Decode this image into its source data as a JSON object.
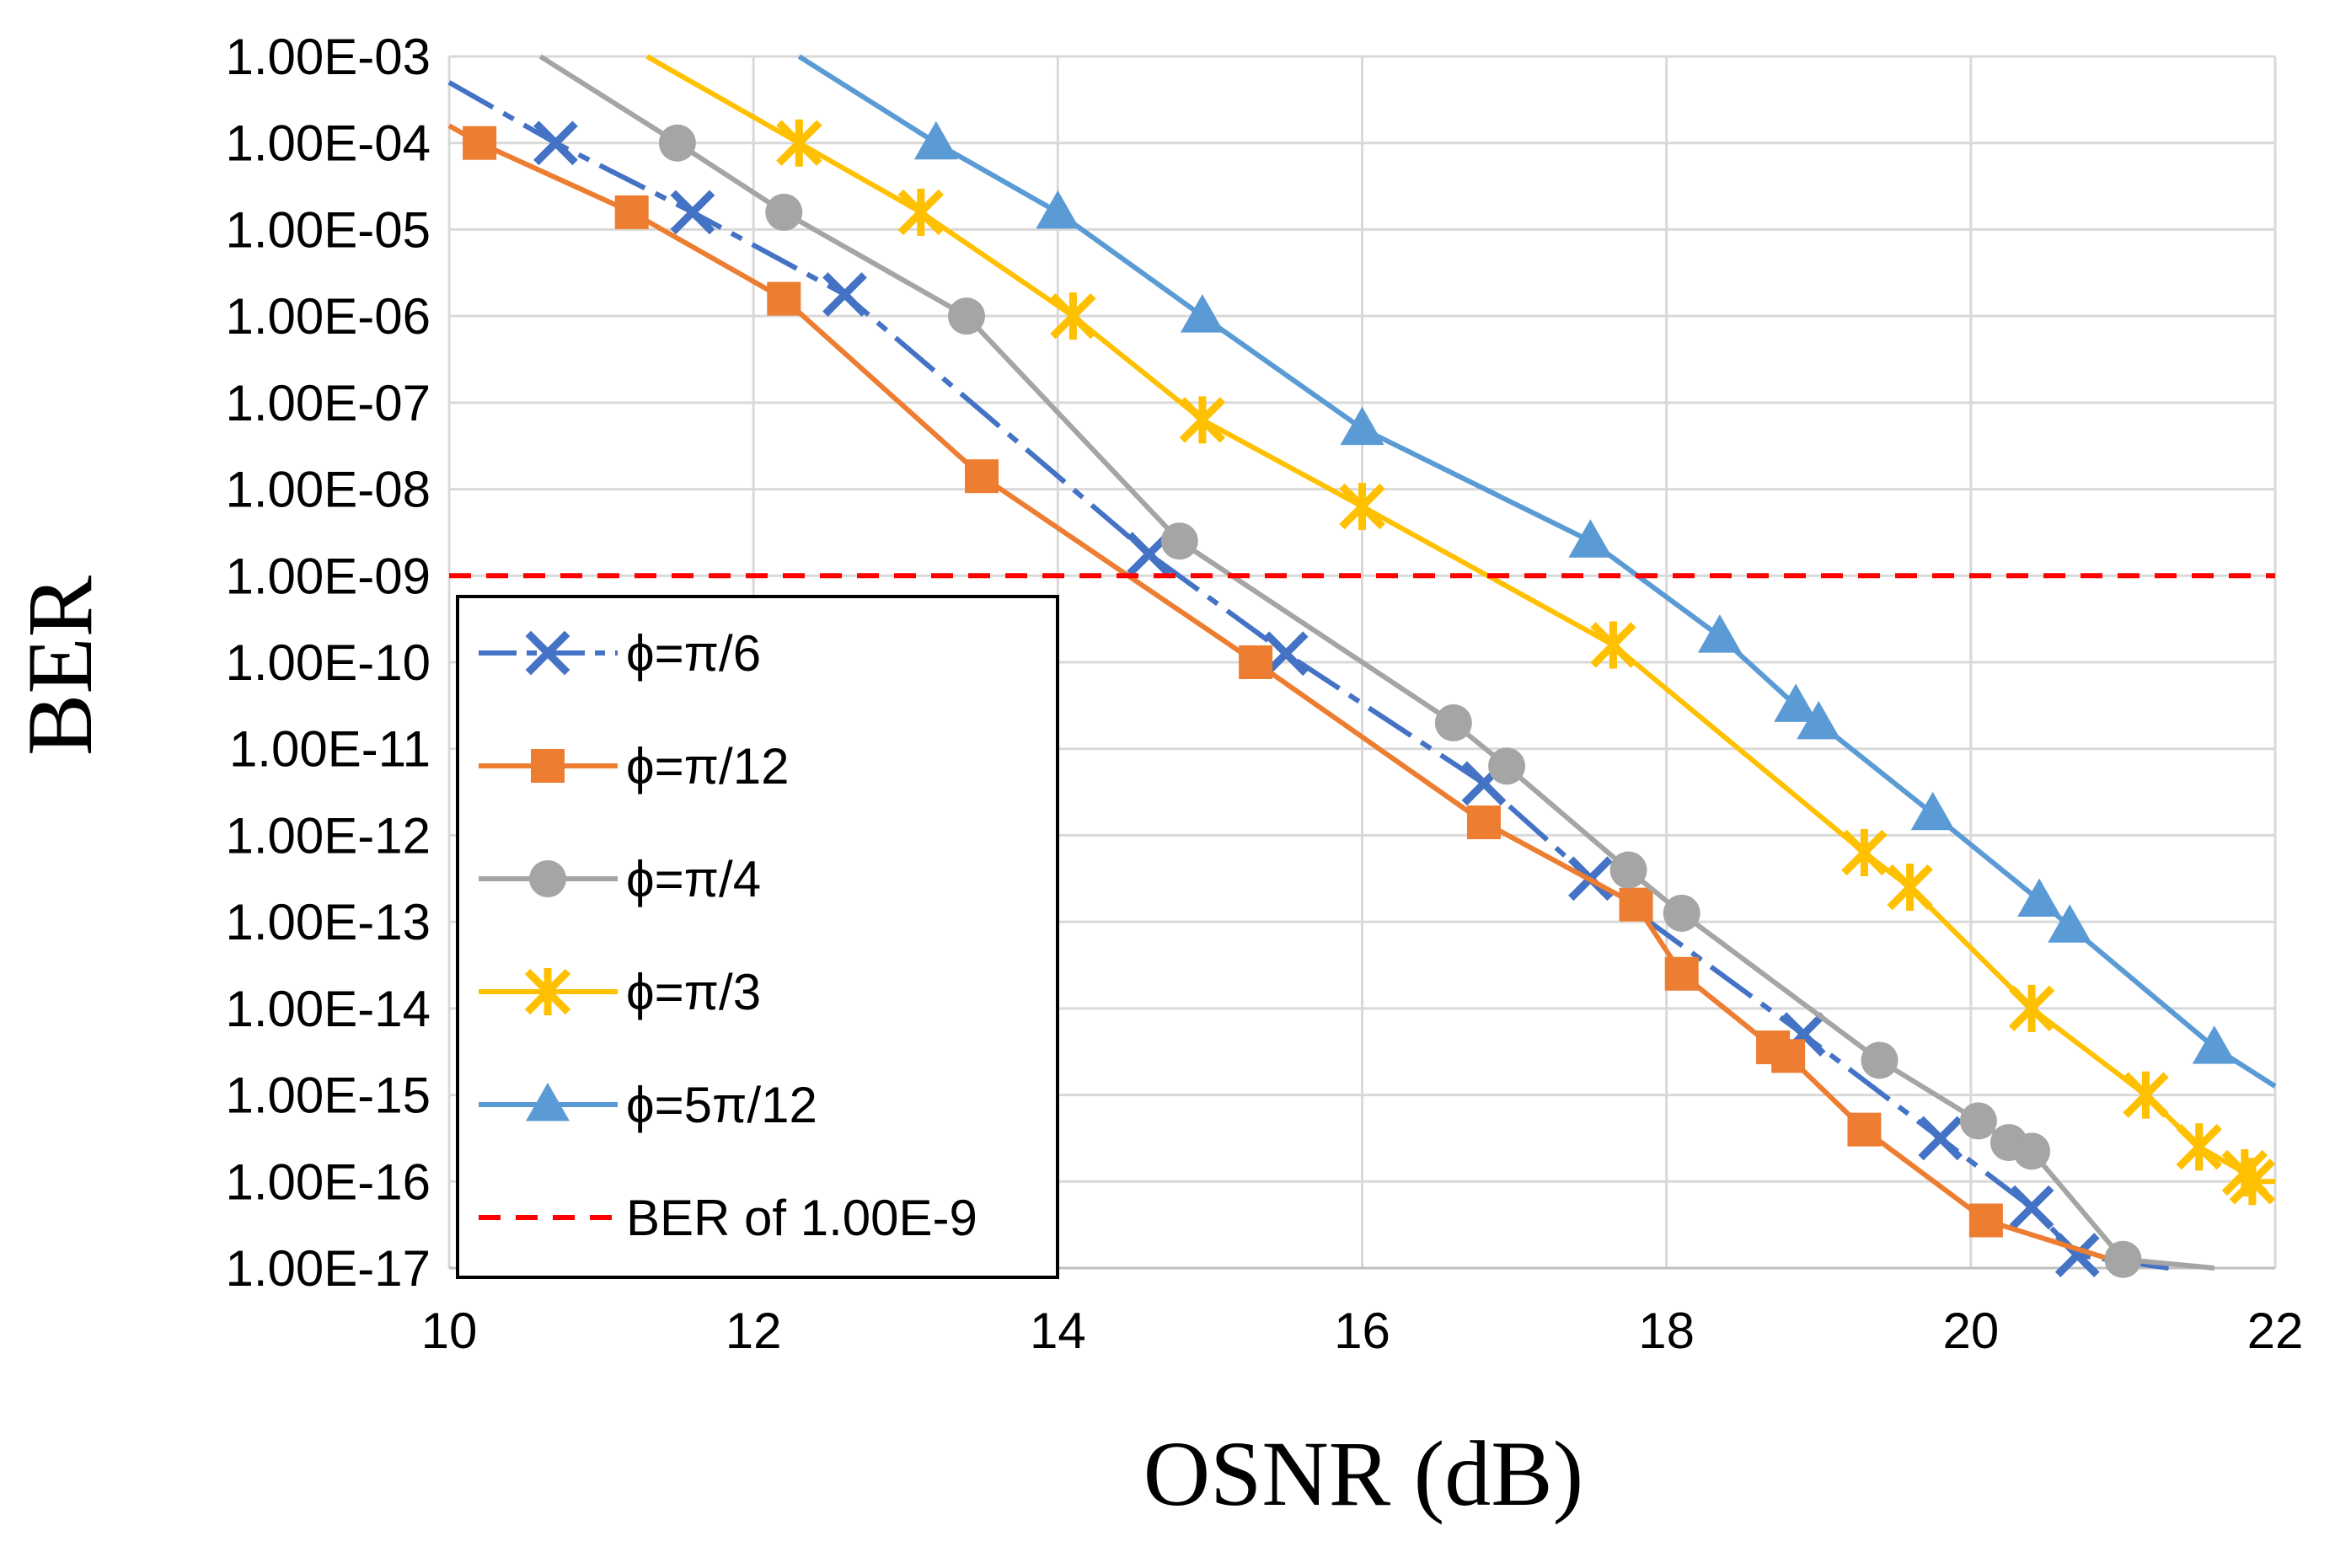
{
  "chart_data": {
    "type": "line",
    "xlabel": "OSNR (dB)",
    "ylabel": "BER",
    "xlim": [
      10,
      22
    ],
    "xticks": [
      "10",
      "12",
      "14",
      "16",
      "18",
      "20",
      "22"
    ],
    "y_scale": "log",
    "ylim_exponent": [
      -17,
      -3
    ],
    "yticks": [
      "1.00E-03",
      "1.00E-04",
      "1.00E-05",
      "1.00E-06",
      "1.00E-07",
      "1.00E-08",
      "1.00E-09",
      "1.00E-10",
      "1.00E-11",
      "1.00E-12",
      "1.00E-13",
      "1.00E-14",
      "1.00E-15",
      "1.00E-16",
      "1.00E-17"
    ],
    "grid": true,
    "legend_position": "left",
    "series": [
      {
        "name": "ϕ=π/6",
        "color": "#4472C4",
        "marker": "x",
        "dash": "dashdot",
        "x": [
          10.7,
          11.6,
          12.6,
          14.6,
          15.5,
          16.8,
          17.5,
          18.9,
          19.8,
          20.4,
          20.7
        ],
        "log10_ber": [
          -4.0,
          -4.8,
          -5.75,
          -8.75,
          -9.9,
          -11.4,
          -12.5,
          -14.3,
          -15.5,
          -16.3,
          -16.85
        ],
        "line_x": [
          10.0,
          21.3
        ],
        "line_log10_ber": [
          -3.3,
          -17.0
        ]
      },
      {
        "name": "ϕ=π/12",
        "color": "#ED7D31",
        "marker": "square",
        "dash": "solid",
        "x": [
          10.2,
          11.2,
          12.2,
          13.5,
          15.3,
          16.8,
          17.8,
          18.1,
          18.7,
          18.8,
          19.3,
          20.1
        ],
        "log10_ber": [
          -4.0,
          -4.8,
          -5.8,
          -7.85,
          -10.0,
          -11.85,
          -12.8,
          -13.6,
          -14.45,
          -14.55,
          -15.4,
          -16.45
        ],
        "line_x": [
          10.0,
          21.1
        ],
        "line_log10_ber": [
          -3.8,
          -17.0
        ]
      },
      {
        "name": "ϕ=π/4",
        "color": "#A5A5A5",
        "marker": "circle",
        "dash": "solid",
        "x": [
          11.5,
          12.2,
          13.4,
          14.8,
          16.6,
          16.95,
          17.75,
          18.1,
          19.4,
          20.05,
          20.25,
          20.4,
          21.0
        ],
        "log10_ber": [
          -4.0,
          -4.8,
          -6.0,
          -8.6,
          -10.7,
          -11.2,
          -12.4,
          -12.9,
          -14.6,
          -15.3,
          -15.55,
          -15.65,
          -16.9
        ],
        "line_x": [
          10.6,
          21.6
        ],
        "line_log10_ber": [
          -3.0,
          -17.0
        ]
      },
      {
        "name": "ϕ=π/3",
        "color": "#FFC000",
        "marker": "asterisk",
        "dash": "solid",
        "x": [
          12.3,
          13.1,
          14.1,
          14.95,
          16.0,
          17.65,
          19.3,
          19.6,
          20.4,
          21.15,
          21.5,
          21.8,
          21.85
        ],
        "log10_ber": [
          -4.0,
          -4.8,
          -6.0,
          -7.2,
          -8.2,
          -9.8,
          -12.2,
          -12.6,
          -14.0,
          -15.0,
          -15.6,
          -15.9,
          -16.0
        ],
        "line_x": [
          11.3,
          22.0
        ],
        "line_log10_ber": [
          -3.0,
          -16.0
        ]
      },
      {
        "name": "ϕ=5π/12",
        "color": "#5B9BD5",
        "marker": "triangle",
        "dash": "solid",
        "x": [
          13.2,
          14.0,
          14.95,
          16.0,
          17.5,
          18.35,
          18.85,
          19.0,
          19.75,
          20.45,
          20.65,
          21.6
        ],
        "log10_ber": [
          -4.0,
          -4.8,
          -6.0,
          -7.3,
          -8.6,
          -9.7,
          -10.5,
          -10.7,
          -11.75,
          -12.75,
          -13.05,
          -14.45
        ],
        "line_x": [
          12.3,
          22.0
        ],
        "line_log10_ber": [
          -3.0,
          -14.9
        ]
      },
      {
        "name": "BER of 1.00E-9",
        "color": "#FF0000",
        "marker": "none",
        "dash": "dashed",
        "x": [
          10,
          22
        ],
        "log10_ber": [
          -9,
          -9
        ]
      }
    ]
  }
}
